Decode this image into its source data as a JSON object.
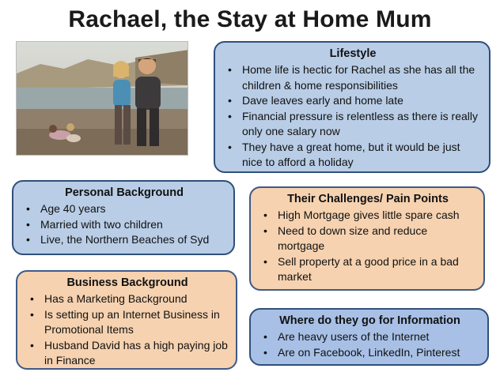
{
  "title": "Rachael, the Stay at Home Mum",
  "lifestyle": {
    "heading": "Lifestyle",
    "items": [
      "Home life is hectic for Rachel as she has all the children & home responsibilities",
      "Dave leaves early and home late",
      "Financial pressure is relentless as there is really only one salary now",
      "They have a great home, but it would be just nice to afford a holiday"
    ]
  },
  "personal": {
    "heading": "Personal Background",
    "items": [
      "Age 40 years",
      "Married with two children",
      "Live, the Northern Beaches of Syd"
    ]
  },
  "challenges": {
    "heading": "Their Challenges/ Pain Points",
    "items": [
      "High Mortgage gives little spare cash",
      "Need to down size and reduce mortgage",
      "Sell property at a good price in a bad market"
    ]
  },
  "business": {
    "heading": "Business Background",
    "items": [
      "Has a Marketing Background",
      "Is setting up an Internet Business in Promotional Items",
      "Husband David has a high paying job in Finance"
    ]
  },
  "information": {
    "heading": "Where do they go for Information",
    "items": [
      "Are heavy users of the Internet",
      "Are on Facebook, LinkedIn, Pinterest"
    ]
  },
  "colors": {
    "blue_card": "#b9cde6",
    "peach_card": "#f6d2b0",
    "info_card": "#a8c0e6",
    "border": "#2f4f7a"
  }
}
